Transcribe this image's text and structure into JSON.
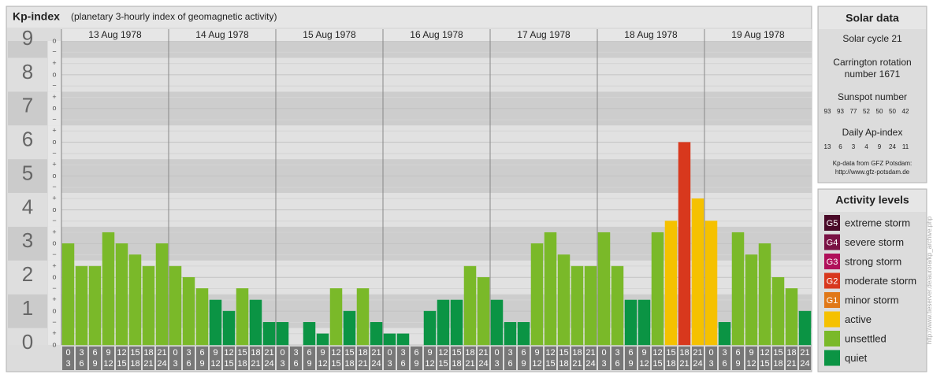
{
  "chart_data": {
    "type": "bar",
    "title": "Kp-index",
    "subtitle": "(planetary 3-hourly index of geomagnetic activity)",
    "days": [
      "13 Aug 1978",
      "14 Aug 1978",
      "15 Aug 1978",
      "16 Aug 1978",
      "17 Aug 1978",
      "18 Aug 1978",
      "19 Aug 1978"
    ],
    "hour_labels": [
      {
        "from": 0,
        "to": 3
      },
      {
        "from": 3,
        "to": 6
      },
      {
        "from": 6,
        "to": 9
      },
      {
        "from": 9,
        "to": 12
      },
      {
        "from": 12,
        "to": 15
      },
      {
        "from": 15,
        "to": 18
      },
      {
        "from": 18,
        "to": 21
      },
      {
        "from": 21,
        "to": 24
      }
    ],
    "values": [
      3,
      2.33,
      2.33,
      3.33,
      3,
      2.67,
      2.33,
      3,
      2.33,
      2,
      1.67,
      1.33,
      1,
      1.67,
      1.33,
      0.67,
      0.67,
      0,
      0.67,
      0.33,
      1.67,
      1,
      1.67,
      0.67,
      0.33,
      0.33,
      0,
      1,
      1.33,
      1.33,
      2.33,
      2,
      1.33,
      0.67,
      0.67,
      3,
      3.33,
      2.67,
      2.33,
      2.33,
      3.33,
      2.33,
      1.33,
      1.33,
      3.33,
      3.67,
      6,
      4.33,
      3.67,
      0.67,
      3.33,
      2.67,
      3,
      2,
      1.67,
      1
    ],
    "colors": [
      "#7ab929",
      "#7ab929",
      "#7ab929",
      "#7ab929",
      "#7ab929",
      "#7ab929",
      "#7ab929",
      "#7ab929",
      "#7ab929",
      "#7ab929",
      "#7ab929",
      "#0b9444",
      "#0b9444",
      "#7ab929",
      "#0b9444",
      "#0b9444",
      "#0b9444",
      "#0b9444",
      "#0b9444",
      "#0b9444",
      "#7ab929",
      "#0b9444",
      "#7ab929",
      "#0b9444",
      "#0b9444",
      "#0b9444",
      "#0b9444",
      "#0b9444",
      "#0b9444",
      "#0b9444",
      "#7ab929",
      "#7ab929",
      "#0b9444",
      "#0b9444",
      "#0b9444",
      "#7ab929",
      "#7ab929",
      "#7ab929",
      "#7ab929",
      "#7ab929",
      "#7ab929",
      "#7ab929",
      "#0b9444",
      "#0b9444",
      "#7ab929",
      "#f5c100",
      "#d8381d",
      "#f5c100",
      "#f5c100",
      "#0b9444",
      "#7ab929",
      "#7ab929",
      "#7ab929",
      "#7ab929",
      "#7ab929",
      "#0b9444"
    ],
    "ylim": [
      0,
      9
    ],
    "yticks": [
      0,
      1,
      2,
      3,
      4,
      5,
      6,
      7,
      8,
      9
    ],
    "kp_suffixes": [
      "−",
      "o",
      "+"
    ],
    "grid": true
  },
  "solar_data": {
    "title": "Solar data",
    "cycle": "Solar cycle 21",
    "carrington": "Carrington rotation number 1671",
    "sunspot_title": "Sunspot number",
    "sunspot": [
      93,
      93,
      77,
      52,
      50,
      50,
      42
    ],
    "ap_title": "Daily Ap-index",
    "ap": [
      13,
      6,
      3,
      4,
      9,
      24,
      11
    ],
    "source": "Kp-data from GFZ Potsdam:",
    "source_url": "http://www.gfz-potsdam.de"
  },
  "activity_levels": {
    "title": "Activity levels",
    "items": [
      {
        "badge": "G5",
        "label": "extreme storm",
        "color": "#4a0a28"
      },
      {
        "badge": "G4",
        "label": "severe storm",
        "color": "#7a1244"
      },
      {
        "badge": "G3",
        "label": "strong storm",
        "color": "#b0105a"
      },
      {
        "badge": "G2",
        "label": "moderate storm",
        "color": "#d8381d"
      },
      {
        "badge": "G1",
        "label": "minor storm",
        "color": "#e07818"
      },
      {
        "label": "active",
        "color": "#f5c100"
      },
      {
        "label": "unsettled",
        "color": "#7ab929"
      },
      {
        "label": "quiet",
        "color": "#0b9444"
      }
    ]
  },
  "credit": "http://www.tieserver.de/aurora/kp_archive.php"
}
